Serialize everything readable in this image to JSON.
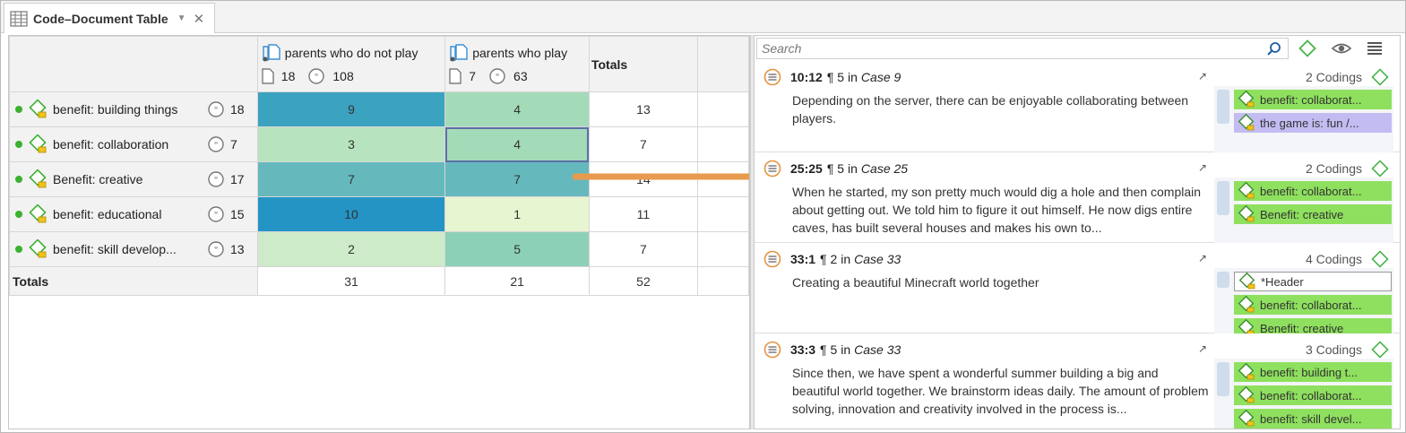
{
  "tab": {
    "title": "Code–Document Table",
    "menu_glyph": "▼",
    "close_glyph": "✕"
  },
  "table": {
    "columns": [
      {
        "name": "parents who do not play",
        "doc_count": "18",
        "segment_count": "108"
      },
      {
        "name": "parents who play",
        "doc_count": "7",
        "segment_count": "63"
      }
    ],
    "totals_label": "Totals",
    "rows": [
      {
        "label": "benefit: building things",
        "count": "18",
        "values": [
          "9",
          "4"
        ],
        "total": "13",
        "colors": [
          "#3ba2c0",
          "#a3dbb8"
        ]
      },
      {
        "label": "benefit: collaboration",
        "count": "7",
        "values": [
          "3",
          "4"
        ],
        "total": "7",
        "colors": [
          "#b7e4be",
          "#a3dbb8"
        ]
      },
      {
        "label": "Benefit: creative",
        "count": "17",
        "values": [
          "7",
          "7"
        ],
        "total": "14",
        "colors": [
          "#65b9bd",
          "#65b9bd"
        ]
      },
      {
        "label": "benefit: educational",
        "count": "15",
        "values": [
          "10",
          "1"
        ],
        "total": "11",
        "colors": [
          "#2494c4",
          "#e7f5d0"
        ]
      },
      {
        "label": "benefit: skill develop...",
        "count": "13",
        "values": [
          "2",
          "5"
        ],
        "total": "7",
        "colors": [
          "#cdebc9",
          "#8dd0b8"
        ]
      }
    ],
    "column_totals": [
      "31",
      "21",
      "52"
    ],
    "selected_cell": {
      "row": 1,
      "col": 1
    }
  },
  "search": {
    "placeholder": "Search",
    "value": ""
  },
  "segments": [
    {
      "ref": "10:12",
      "para": "¶ 5",
      "in": "in",
      "case": "Case 9",
      "codings": "2 Codings",
      "text": "Depending on the server, there can be enjoyable collaborating between players.",
      "chips": [
        {
          "label": "benefit: collaborat...",
          "color": "#8ee05e"
        },
        {
          "label": "the game is: fun /...",
          "color": "#c3bcf2"
        }
      ]
    },
    {
      "ref": "25:25",
      "para": "¶ 5",
      "in": "in",
      "case": "Case 25",
      "codings": "2 Codings",
      "text": "When he started, my son pretty much would dig a hole and then complain about getting out. We told him to figure it out himself. He now digs entire caves, has built several houses and makes his own to...",
      "chips": [
        {
          "label": "benefit: collaborat...",
          "color": "#8ee05e"
        },
        {
          "label": "Benefit: creative",
          "color": "#8ee05e"
        }
      ]
    },
    {
      "ref": "33:1",
      "para": "¶ 2",
      "in": "in",
      "case": "Case 33",
      "codings": "4 Codings",
      "text": "Creating a beautiful Minecraft world together",
      "chips": [
        {
          "label": "*Header",
          "color": "#ffffff"
        },
        {
          "label": "benefit: collaborat...",
          "color": "#8ee05e"
        },
        {
          "label": "Benefit: creative",
          "color": "#8ee05e"
        }
      ]
    },
    {
      "ref": "33:3",
      "para": "¶ 5",
      "in": "in",
      "case": "Case 33",
      "codings": "3 Codings",
      "text": "Since then, we have spent a wonderful summer building a big and beautiful world together. We brainstorm ideas daily. The amount of problem solving, innovation and creativity involved in the process is...",
      "chips": [
        {
          "label": "benefit: building t...",
          "color": "#8ee05e"
        },
        {
          "label": "benefit: collaborat...",
          "color": "#8ee05e"
        },
        {
          "label": "benefit: skill devel...",
          "color": "#8ee05e"
        }
      ]
    }
  ],
  "colors": {
    "arrow": "#e89a4e",
    "code_dot": "#3cb030",
    "selection": "#5c6fa8"
  },
  "icons": [
    "table-icon",
    "document-group-icon",
    "document-icon",
    "quote-icon",
    "code-icon",
    "search-icon",
    "add-code-icon",
    "eye-icon",
    "menu-icon",
    "segment-icon",
    "jump-icon"
  ]
}
